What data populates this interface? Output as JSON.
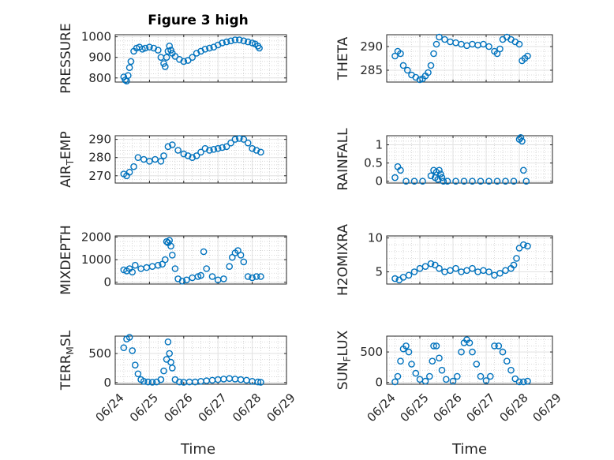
{
  "title": "Figure 3 high",
  "xlabel": "Time",
  "x_ticks": [
    "06/24",
    "06/25",
    "06/26",
    "06/27",
    "06/28",
    "06/29"
  ],
  "x_range": [
    "06/24",
    "06/29"
  ],
  "marker_color": "#0072BD",
  "chart_data": [
    {
      "type": "scatter",
      "ylabel": "PRESSURE",
      "ylim": [
        780,
        1010
      ],
      "y_ticks": [
        800,
        900,
        1000
      ],
      "grid": true,
      "x": [
        "2017-06-24 06:00",
        "2017-06-24 07:00",
        "2017-06-24 08:00",
        "2017-06-24 09:00",
        "2017-06-24 10:00",
        "2017-06-24 11:00",
        "2017-06-24 13:00",
        "2017-06-24 15:00",
        "2017-06-24 17:00",
        "2017-06-24 19:00",
        "2017-06-24 21:00",
        "2017-06-25 00:00",
        "2017-06-25 03:00",
        "2017-06-25 06:00",
        "2017-06-25 08:00",
        "2017-06-25 10:00",
        "2017-06-25 11:00",
        "2017-06-25 12:00",
        "2017-06-25 13:00",
        "2017-06-25 14:00",
        "2017-06-25 15:00",
        "2017-06-25 16:00",
        "2017-06-25 18:00",
        "2017-06-25 21:00",
        "2017-06-26 00:00",
        "2017-06-26 03:00",
        "2017-06-26 06:00",
        "2017-06-26 09:00",
        "2017-06-26 12:00",
        "2017-06-26 15:00",
        "2017-06-26 18:00",
        "2017-06-26 21:00",
        "2017-06-27 00:00",
        "2017-06-27 03:00",
        "2017-06-27 06:00",
        "2017-06-27 09:00",
        "2017-06-27 12:00",
        "2017-06-27 15:00",
        "2017-06-27 18:00",
        "2017-06-27 21:00",
        "2017-06-28 00:00",
        "2017-06-28 02:00",
        "2017-06-28 04:00",
        "2017-06-28 05:00"
      ],
      "y": [
        805,
        790,
        785,
        812,
        850,
        880,
        930,
        945,
        950,
        940,
        945,
        950,
        945,
        935,
        900,
        870,
        855,
        900,
        930,
        955,
        935,
        920,
        905,
        890,
        880,
        885,
        900,
        920,
        930,
        940,
        945,
        950,
        960,
        970,
        975,
        980,
        985,
        985,
        980,
        975,
        970,
        965,
        955,
        945
      ]
    },
    {
      "type": "scatter",
      "ylabel": "THETA",
      "ylim": [
        282.5,
        292.5
      ],
      "y_ticks": [
        285,
        290
      ],
      "grid": true,
      "x": [
        "2017-06-24 06:00",
        "2017-06-24 08:00",
        "2017-06-24 10:00",
        "2017-06-24 12:00",
        "2017-06-24 15:00",
        "2017-06-24 18:00",
        "2017-06-24 21:00",
        "2017-06-25 00:00",
        "2017-06-25 02:00",
        "2017-06-25 04:00",
        "2017-06-25 06:00",
        "2017-06-25 08:00",
        "2017-06-25 10:00",
        "2017-06-25 12:00",
        "2017-06-25 14:00",
        "2017-06-25 18:00",
        "2017-06-25 22:00",
        "2017-06-26 02:00",
        "2017-06-26 06:00",
        "2017-06-26 10:00",
        "2017-06-26 14:00",
        "2017-06-26 18:00",
        "2017-06-26 22:00",
        "2017-06-27 02:00",
        "2017-06-27 06:00",
        "2017-06-27 08:00",
        "2017-06-27 10:00",
        "2017-06-27 12:00",
        "2017-06-27 15:00",
        "2017-06-27 18:00",
        "2017-06-27 21:00",
        "2017-06-28 00:00",
        "2017-06-28 02:00",
        "2017-06-28 04:00",
        "2017-06-28 06:00"
      ],
      "y": [
        288,
        289,
        288.5,
        286,
        285,
        284,
        283.5,
        283,
        283.2,
        283.8,
        284.5,
        286,
        288.5,
        290.5,
        292,
        291.5,
        291,
        290.8,
        290.5,
        290.2,
        290.5,
        290.3,
        290.5,
        290,
        289,
        288.5,
        289.5,
        291.5,
        292,
        291.5,
        291,
        290.5,
        287,
        287.5,
        288
      ]
    },
    {
      "type": "scatter",
      "ylabel": "AIR_TEMP",
      "ylim": [
        266,
        292
      ],
      "y_ticks": [
        270,
        280,
        290
      ],
      "grid": true,
      "x": [
        "2017-06-24 06:00",
        "2017-06-24 08:00",
        "2017-06-24 10:00",
        "2017-06-24 13:00",
        "2017-06-24 16:00",
        "2017-06-24 20:00",
        "2017-06-25 00:00",
        "2017-06-25 04:00",
        "2017-06-25 08:00",
        "2017-06-25 10:00",
        "2017-06-25 13:00",
        "2017-06-25 16:00",
        "2017-06-25 20:00",
        "2017-06-26 00:00",
        "2017-06-26 03:00",
        "2017-06-26 06:00",
        "2017-06-26 09:00",
        "2017-06-26 12:00",
        "2017-06-26 15:00",
        "2017-06-26 18:00",
        "2017-06-26 21:00",
        "2017-06-27 00:00",
        "2017-06-27 03:00",
        "2017-06-27 06:00",
        "2017-06-27 09:00",
        "2017-06-27 12:00",
        "2017-06-27 15:00",
        "2017-06-27 18:00",
        "2017-06-27 21:00",
        "2017-06-28 00:00",
        "2017-06-28 03:00",
        "2017-06-28 06:00"
      ],
      "y": [
        271,
        270,
        272,
        275,
        280,
        279,
        278,
        279,
        278,
        281,
        286,
        287,
        284,
        282,
        281,
        280,
        281,
        283,
        285,
        284,
        284.5,
        285,
        285.5,
        286,
        288,
        290,
        290.5,
        290,
        288,
        285,
        284,
        283
      ]
    },
    {
      "type": "scatter",
      "ylabel": "RAINFALL",
      "ylim": [
        -0.05,
        1.25
      ],
      "y_ticks": [
        0,
        0.5,
        1
      ],
      "grid": true,
      "x": [
        "2017-06-24 06:00",
        "2017-06-24 08:00",
        "2017-06-24 10:00",
        "2017-06-24 14:00",
        "2017-06-24 20:00",
        "2017-06-25 02:00",
        "2017-06-25 08:00",
        "2017-06-25 10:00",
        "2017-06-25 11:00",
        "2017-06-25 12:00",
        "2017-06-25 13:00",
        "2017-06-25 14:00",
        "2017-06-25 15:00",
        "2017-06-25 16:00",
        "2017-06-25 17:00",
        "2017-06-25 20:00",
        "2017-06-26 02:00",
        "2017-06-26 08:00",
        "2017-06-26 14:00",
        "2017-06-26 20:00",
        "2017-06-27 02:00",
        "2017-06-27 08:00",
        "2017-06-27 14:00",
        "2017-06-27 20:00",
        "2017-06-28 00:00",
        "2017-06-28 01:00",
        "2017-06-28 02:00",
        "2017-06-28 03:00",
        "2017-06-28 05:00"
      ],
      "y": [
        0.1,
        0.4,
        0.3,
        0,
        0,
        0,
        0.15,
        0.3,
        0.1,
        0.25,
        0.05,
        0.3,
        0.2,
        0.1,
        0,
        0,
        0,
        0,
        0,
        0,
        0,
        0,
        0,
        0,
        1.15,
        1.2,
        1.1,
        0.3,
        0
      ]
    },
    {
      "type": "scatter",
      "ylabel": "MIXDEPTH",
      "ylim": [
        -80,
        2050
      ],
      "y_ticks": [
        0,
        1000,
        2000
      ],
      "grid": true,
      "x": [
        "2017-06-24 06:00",
        "2017-06-24 08:00",
        "2017-06-24 10:00",
        "2017-06-24 12:00",
        "2017-06-24 14:00",
        "2017-06-24 18:00",
        "2017-06-24 22:00",
        "2017-06-25 02:00",
        "2017-06-25 06:00",
        "2017-06-25 09:00",
        "2017-06-25 11:00",
        "2017-06-25 12:00",
        "2017-06-25 13:00",
        "2017-06-25 14:00",
        "2017-06-25 15:00",
        "2017-06-25 16:00",
        "2017-06-25 18:00",
        "2017-06-25 20:00",
        "2017-06-25 23:00",
        "2017-06-26 02:00",
        "2017-06-26 06:00",
        "2017-06-26 10:00",
        "2017-06-26 12:00",
        "2017-06-26 14:00",
        "2017-06-26 16:00",
        "2017-06-26 20:00",
        "2017-06-27 00:00",
        "2017-06-27 04:00",
        "2017-06-27 08:00",
        "2017-06-27 10:00",
        "2017-06-27 12:00",
        "2017-06-27 14:00",
        "2017-06-27 16:00",
        "2017-06-27 18:00",
        "2017-06-27 21:00",
        "2017-06-28 00:00",
        "2017-06-28 03:00",
        "2017-06-28 06:00"
      ],
      "y": [
        550,
        500,
        600,
        450,
        750,
        600,
        650,
        700,
        750,
        800,
        1000,
        1800,
        1750,
        1850,
        1600,
        1200,
        600,
        150,
        50,
        100,
        200,
        250,
        300,
        1350,
        600,
        250,
        100,
        150,
        700,
        1100,
        1300,
        1400,
        1200,
        900,
        250,
        200,
        250,
        250
      ]
    },
    {
      "type": "scatter",
      "ylabel": "H2OMIXRA",
      "ylim": [
        3.2,
        10.3
      ],
      "y_ticks": [
        5,
        10
      ],
      "grid": true,
      "x": [
        "2017-06-24 06:00",
        "2017-06-24 09:00",
        "2017-06-24 12:00",
        "2017-06-24 16:00",
        "2017-06-24 20:00",
        "2017-06-25 00:00",
        "2017-06-25 04:00",
        "2017-06-25 08:00",
        "2017-06-25 11:00",
        "2017-06-25 14:00",
        "2017-06-25 18:00",
        "2017-06-25 22:00",
        "2017-06-26 02:00",
        "2017-06-26 06:00",
        "2017-06-26 10:00",
        "2017-06-26 14:00",
        "2017-06-26 18:00",
        "2017-06-26 22:00",
        "2017-06-27 02:00",
        "2017-06-27 06:00",
        "2017-06-27 10:00",
        "2017-06-27 14:00",
        "2017-06-27 18:00",
        "2017-06-27 20:00",
        "2017-06-27 22:00",
        "2017-06-28 00:00",
        "2017-06-28 03:00",
        "2017-06-28 06:00"
      ],
      "y": [
        4.0,
        3.8,
        4.2,
        4.5,
        5.0,
        5.5,
        5.8,
        6.2,
        6.0,
        5.5,
        5.0,
        5.2,
        5.5,
        5.0,
        5.2,
        5.5,
        5.0,
        5.2,
        5.0,
        4.5,
        4.8,
        5.2,
        5.5,
        6.0,
        7.0,
        8.5,
        9.0,
        8.8
      ]
    },
    {
      "type": "scatter",
      "ylabel": "TERR_MSL",
      "ylim": [
        -30,
        800
      ],
      "y_ticks": [
        0,
        500
      ],
      "grid": true,
      "x": [
        "2017-06-24 06:00",
        "2017-06-24 08:00",
        "2017-06-24 10:00",
        "2017-06-24 12:00",
        "2017-06-24 14:00",
        "2017-06-24 16:00",
        "2017-06-24 18:00",
        "2017-06-24 20:00",
        "2017-06-24 23:00",
        "2017-06-25 02:00",
        "2017-06-25 05:00",
        "2017-06-25 08:00",
        "2017-06-25 10:00",
        "2017-06-25 12:00",
        "2017-06-25 13:00",
        "2017-06-25 14:00",
        "2017-06-25 15:00",
        "2017-06-25 16:00",
        "2017-06-25 18:00",
        "2017-06-25 21:00",
        "2017-06-26 00:00",
        "2017-06-26 04:00",
        "2017-06-26 08:00",
        "2017-06-26 12:00",
        "2017-06-26 16:00",
        "2017-06-26 20:00",
        "2017-06-27 00:00",
        "2017-06-27 04:00",
        "2017-06-27 08:00",
        "2017-06-27 12:00",
        "2017-06-27 16:00",
        "2017-06-27 20:00",
        "2017-06-28 00:00",
        "2017-06-28 04:00",
        "2017-06-28 06:00"
      ],
      "y": [
        600,
        750,
        780,
        550,
        300,
        150,
        50,
        20,
        10,
        5,
        10,
        50,
        200,
        400,
        700,
        500,
        350,
        250,
        50,
        10,
        5,
        10,
        10,
        20,
        30,
        40,
        50,
        60,
        70,
        60,
        50,
        40,
        20,
        10,
        5
      ]
    },
    {
      "type": "scatter",
      "ylabel": "SUN_FLUX",
      "ylim": [
        -30,
        760
      ],
      "y_ticks": [
        0,
        500
      ],
      "grid": true,
      "x": [
        "2017-06-24 06:00",
        "2017-06-24 08:00",
        "2017-06-24 10:00",
        "2017-06-24 12:00",
        "2017-06-24 14:00",
        "2017-06-24 16:00",
        "2017-06-24 18:00",
        "2017-06-24 21:00",
        "2017-06-25 00:00",
        "2017-06-25 04:00",
        "2017-06-25 07:00",
        "2017-06-25 09:00",
        "2017-06-25 10:00",
        "2017-06-25 12:00",
        "2017-06-25 14:00",
        "2017-06-25 16:00",
        "2017-06-25 19:00",
        "2017-06-26 00:00",
        "2017-06-26 03:00",
        "2017-06-26 06:00",
        "2017-06-26 08:00",
        "2017-06-26 10:00",
        "2017-06-26 12:00",
        "2017-06-26 14:00",
        "2017-06-26 17:00",
        "2017-06-26 20:00",
        "2017-06-27 00:00",
        "2017-06-27 03:00",
        "2017-06-27 06:00",
        "2017-06-27 09:00",
        "2017-06-27 12:00",
        "2017-06-27 15:00",
        "2017-06-27 18:00",
        "2017-06-27 21:00",
        "2017-06-28 00:00",
        "2017-06-28 03:00",
        "2017-06-28 06:00"
      ],
      "y": [
        10,
        100,
        350,
        550,
        600,
        500,
        300,
        150,
        50,
        20,
        100,
        350,
        600,
        600,
        400,
        200,
        50,
        20,
        100,
        500,
        650,
        700,
        650,
        500,
        300,
        100,
        30,
        100,
        600,
        600,
        500,
        350,
        200,
        60,
        10,
        10,
        20
      ]
    }
  ]
}
